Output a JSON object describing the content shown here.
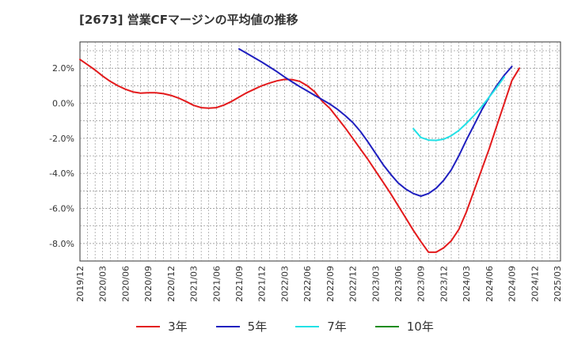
{
  "chart_data": {
    "type": "line",
    "title": "[2673]  営業CFマージンの平均値の推移",
    "xlabel": "",
    "ylabel": "",
    "x_ticks": [
      "2019/12",
      "2020/03",
      "2020/06",
      "2020/09",
      "2020/12",
      "2021/03",
      "2021/06",
      "2021/09",
      "2021/12",
      "2022/03",
      "2022/06",
      "2022/09",
      "2022/12",
      "2023/03",
      "2023/06",
      "2023/09",
      "2023/12",
      "2024/03",
      "2024/06",
      "2024/09",
      "2024/12",
      "2025/03"
    ],
    "y_ticks": [
      2.0,
      0.0,
      -2.0,
      -4.0,
      -6.0,
      -8.0
    ],
    "y_tick_labels": [
      "2.0%",
      "0.0%",
      "-2.0%",
      "-4.0%",
      "-6.0%",
      "-8.0%"
    ],
    "ylim": [
      -9.0,
      3.5
    ],
    "grid": true,
    "legend_position": "bottom",
    "series": [
      {
        "name": "3年",
        "color": "#e31a1c",
        "points": [
          [
            "2019/12",
            2.5
          ],
          [
            "2020/01",
            2.2
          ],
          [
            "2020/02",
            1.9
          ],
          [
            "2020/03",
            1.55
          ],
          [
            "2020/04",
            1.25
          ],
          [
            "2020/05",
            1.0
          ],
          [
            "2020/06",
            0.8
          ],
          [
            "2020/07",
            0.65
          ],
          [
            "2020/08",
            0.58
          ],
          [
            "2020/09",
            0.6
          ],
          [
            "2020/10",
            0.6
          ],
          [
            "2020/11",
            0.55
          ],
          [
            "2020/12",
            0.45
          ],
          [
            "2021/01",
            0.3
          ],
          [
            "2021/02",
            0.1
          ],
          [
            "2021/03",
            -0.12
          ],
          [
            "2021/04",
            -0.25
          ],
          [
            "2021/05",
            -0.28
          ],
          [
            "2021/06",
            -0.25
          ],
          [
            "2021/07",
            -0.1
          ],
          [
            "2021/08",
            0.1
          ],
          [
            "2021/09",
            0.35
          ],
          [
            "2021/10",
            0.6
          ],
          [
            "2021/11",
            0.8
          ],
          [
            "2021/12",
            1.0
          ],
          [
            "2022/01",
            1.15
          ],
          [
            "2022/02",
            1.28
          ],
          [
            "2022/03",
            1.36
          ],
          [
            "2022/04",
            1.35
          ],
          [
            "2022/05",
            1.25
          ],
          [
            "2022/06",
            1.0
          ],
          [
            "2022/07",
            0.65
          ],
          [
            "2022/08",
            0.1
          ],
          [
            "2022/09",
            -0.3
          ],
          [
            "2022/10",
            -0.85
          ],
          [
            "2022/11",
            -1.4
          ],
          [
            "2022/12",
            -2.0
          ],
          [
            "2023/01",
            -2.6
          ],
          [
            "2023/02",
            -3.2
          ],
          [
            "2023/03",
            -3.85
          ],
          [
            "2023/04",
            -4.5
          ],
          [
            "2023/05",
            -5.15
          ],
          [
            "2023/06",
            -5.85
          ],
          [
            "2023/07",
            -6.55
          ],
          [
            "2023/08",
            -7.25
          ],
          [
            "2023/09",
            -7.9
          ],
          [
            "2023/10",
            -8.5
          ],
          [
            "2023/11",
            -8.5
          ],
          [
            "2023/12",
            -8.25
          ],
          [
            "2024/01",
            -7.85
          ],
          [
            "2024/02",
            -7.2
          ],
          [
            "2024/03",
            -6.2
          ],
          [
            "2024/04",
            -5.0
          ],
          [
            "2024/05",
            -3.8
          ],
          [
            "2024/06",
            -2.6
          ],
          [
            "2024/07",
            -1.3
          ],
          [
            "2024/08",
            0.0
          ],
          [
            "2024/09",
            1.3
          ],
          [
            "2024/10",
            2.0
          ]
        ]
      },
      {
        "name": "5年",
        "color": "#1f1fbf",
        "points": [
          [
            "2021/09",
            3.1
          ],
          [
            "2021/10",
            2.85
          ],
          [
            "2021/11",
            2.6
          ],
          [
            "2021/12",
            2.35
          ],
          [
            "2022/01",
            2.08
          ],
          [
            "2022/02",
            1.8
          ],
          [
            "2022/03",
            1.5
          ],
          [
            "2022/04",
            1.22
          ],
          [
            "2022/05",
            0.95
          ],
          [
            "2022/06",
            0.7
          ],
          [
            "2022/07",
            0.45
          ],
          [
            "2022/08",
            0.2
          ],
          [
            "2022/09",
            -0.05
          ],
          [
            "2022/10",
            -0.35
          ],
          [
            "2022/11",
            -0.7
          ],
          [
            "2022/12",
            -1.1
          ],
          [
            "2023/01",
            -1.6
          ],
          [
            "2023/02",
            -2.2
          ],
          [
            "2023/03",
            -2.85
          ],
          [
            "2023/04",
            -3.5
          ],
          [
            "2023/05",
            -4.05
          ],
          [
            "2023/06",
            -4.55
          ],
          [
            "2023/07",
            -4.9
          ],
          [
            "2023/08",
            -5.15
          ],
          [
            "2023/09",
            -5.3
          ],
          [
            "2023/10",
            -5.15
          ],
          [
            "2023/11",
            -4.85
          ],
          [
            "2023/12",
            -4.4
          ],
          [
            "2024/01",
            -3.8
          ],
          [
            "2024/02",
            -3.0
          ],
          [
            "2024/03",
            -2.1
          ],
          [
            "2024/04",
            -1.25
          ],
          [
            "2024/05",
            -0.4
          ],
          [
            "2024/06",
            0.35
          ],
          [
            "2024/07",
            1.0
          ],
          [
            "2024/08",
            1.6
          ],
          [
            "2024/09",
            2.1
          ]
        ]
      },
      {
        "name": "7年",
        "color": "#22e1e6",
        "points": [
          [
            "2023/08",
            -1.45
          ],
          [
            "2023/09",
            -1.95
          ],
          [
            "2023/10",
            -2.1
          ],
          [
            "2023/11",
            -2.12
          ],
          [
            "2023/12",
            -2.05
          ],
          [
            "2024/01",
            -1.85
          ],
          [
            "2024/02",
            -1.55
          ],
          [
            "2024/03",
            -1.15
          ],
          [
            "2024/04",
            -0.7
          ],
          [
            "2024/05",
            -0.2
          ],
          [
            "2024/06",
            0.35
          ],
          [
            "2024/07",
            0.9
          ],
          [
            "2024/08",
            1.5
          ]
        ]
      },
      {
        "name": "10年",
        "color": "#1a8c1a",
        "points": []
      }
    ]
  }
}
